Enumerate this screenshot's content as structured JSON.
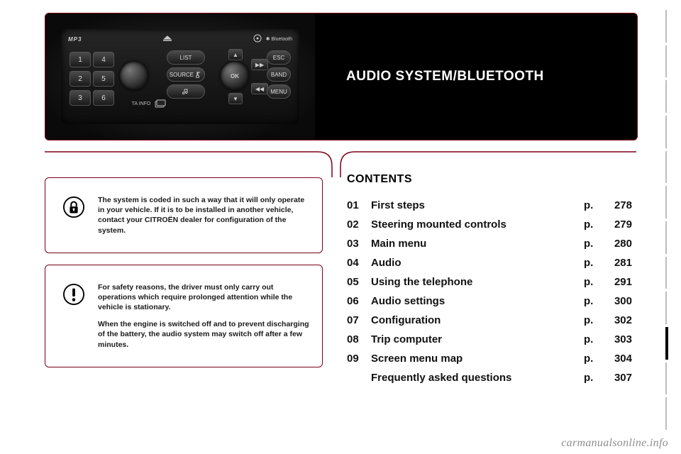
{
  "title": "AUDIO SYSTEM/BLUETOOTH",
  "colors": {
    "accent": "#7a0018",
    "page_bg": "#ffffff",
    "panel_bg": "#000000",
    "text": "#111111"
  },
  "radio": {
    "mp3": "MP3",
    "ok": "OK",
    "presets": [
      "1",
      "4",
      "2",
      "5",
      "3",
      "6"
    ],
    "mid_buttons": {
      "list": "LIST",
      "source": "SOURCE"
    },
    "right_buttons": {
      "esc": "ESC",
      "band": "BAND",
      "menu": "MENU"
    },
    "ta_label": "TA INFO",
    "bluetooth": "Bluetooth"
  },
  "notices": {
    "lock": {
      "p1": "The system is coded in such a way that it will only operate in your vehicle. If it is to be installed in another vehicle, contact your CITROËN dealer for configuration of the system."
    },
    "warn": {
      "p1": "For safety reasons, the driver must only carry out operations which require prolonged attention while the vehicle is stationary.",
      "p2": "When the engine is switched off and to prevent discharging of the battery, the audio system may switch off after a few minutes."
    }
  },
  "contents": {
    "heading": "CONTENTS",
    "p_label": "p.",
    "rows": [
      {
        "num": "01",
        "title": "First steps",
        "page": "278"
      },
      {
        "num": "02",
        "title": "Steering mounted controls",
        "page": "279"
      },
      {
        "num": "03",
        "title": "Main menu",
        "page": "280"
      },
      {
        "num": "04",
        "title": "Audio",
        "page": "281"
      },
      {
        "num": "05",
        "title": "Using the telephone",
        "page": "291"
      },
      {
        "num": "06",
        "title": "Audio settings",
        "page": "300"
      },
      {
        "num": "07",
        "title": "Configuration",
        "page": "302"
      },
      {
        "num": "08",
        "title": "Trip computer",
        "page": "303"
      },
      {
        "num": "09",
        "title": "Screen menu map",
        "page": "304"
      },
      {
        "num": "",
        "title": "Frequently asked questions",
        "page": "307"
      }
    ]
  },
  "watermark": "carmanualsonline.info"
}
